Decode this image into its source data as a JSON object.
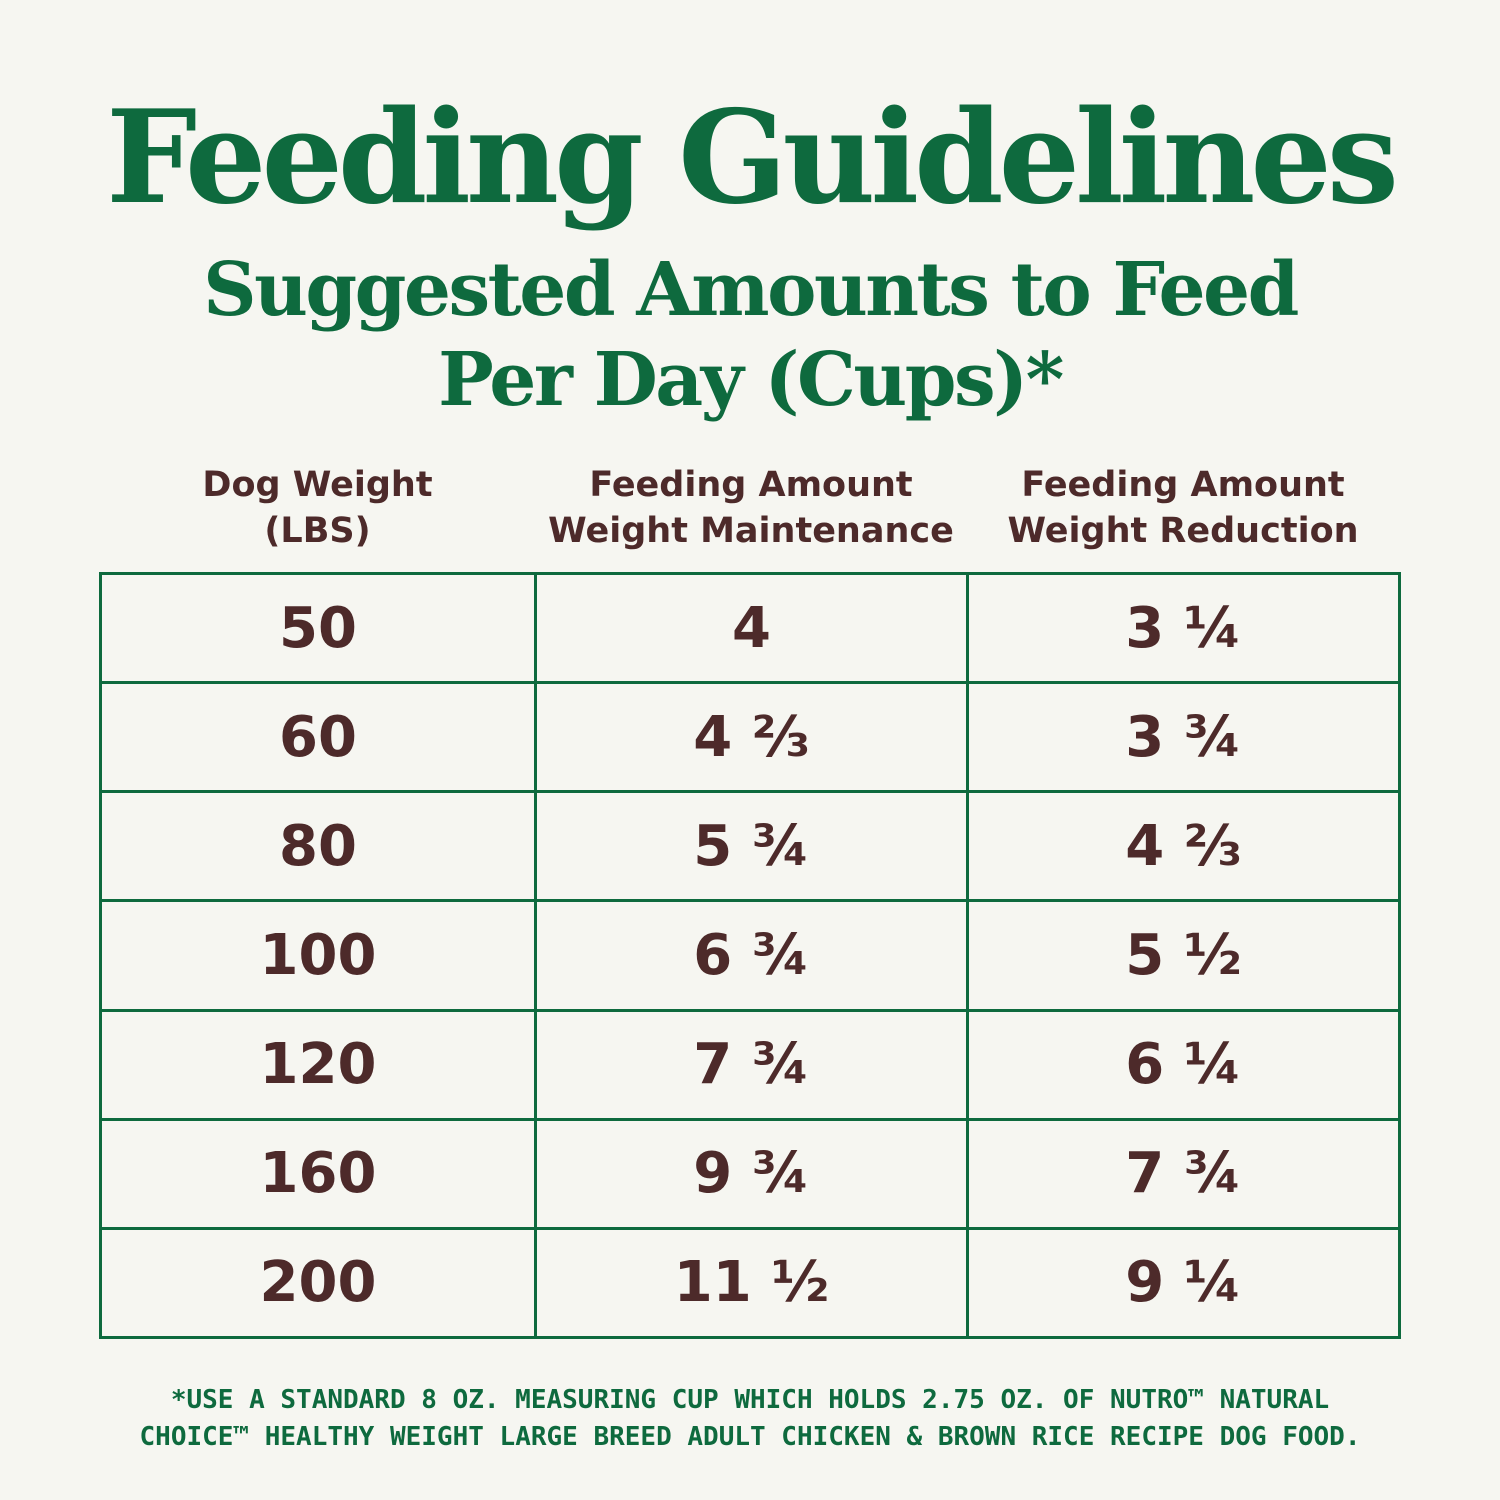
{
  "header": {
    "title": "Feeding Guidelines",
    "subtitle_line1": "Suggested Amounts to Feed",
    "subtitle_line2": "Per Day (Cups)*"
  },
  "table": {
    "columns": [
      {
        "line1": "Dog Weight",
        "line2": "(LBS)"
      },
      {
        "line1": "Feeding Amount",
        "line2": "Weight Maintenance"
      },
      {
        "line1": "Feeding Amount",
        "line2": "Weight Reduction"
      }
    ],
    "rows": [
      [
        "50",
        "4",
        "3 ¼"
      ],
      [
        "60",
        "4 ⅔",
        "3 ¾"
      ],
      [
        "80",
        "5 ¾",
        "4 ⅔"
      ],
      [
        "100",
        "6 ¾",
        "5 ½"
      ],
      [
        "120",
        "7 ¾",
        "6 ¼"
      ],
      [
        "160",
        "9 ¾",
        "7 ¾"
      ],
      [
        "200",
        "11 ½",
        "9 ¼"
      ]
    ]
  },
  "footnote": {
    "line1": "*USE A STANDARD 8 OZ. MEASURING CUP WHICH HOLDS 2.75 OZ. OF NUTRO™ NATURAL",
    "line2": "CHOICE™ HEALTHY WEIGHT LARGE BREED ADULT CHICKEN & BROWN RICE RECIPE DOG FOOD."
  },
  "colors": {
    "background": "#f6f6f1",
    "green": "#0e6a3e",
    "brown": "#4d2a2a"
  }
}
